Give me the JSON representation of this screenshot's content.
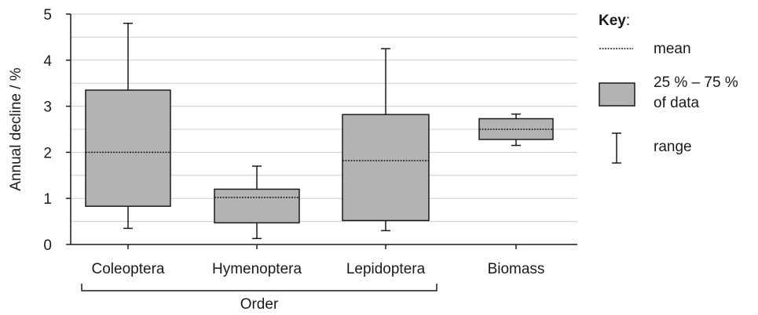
{
  "chart_data": {
    "type": "box",
    "ylabel": "Annual decline / %",
    "ylim": [
      0,
      5
    ],
    "y_ticks": [
      0,
      1,
      2,
      3,
      4,
      5
    ],
    "grid": "horizontal every 0.5",
    "categories": [
      "Coleoptera",
      "Hymenoptera",
      "Lepidoptera",
      "Biomass"
    ],
    "group_label": "Order",
    "group_members": [
      "Coleoptera",
      "Hymenoptera",
      "Lepidoptera"
    ],
    "boxes": [
      {
        "category": "Coleoptera",
        "min": 0.35,
        "q1": 0.83,
        "mean": 2.0,
        "q3": 3.35,
        "max": 4.8
      },
      {
        "category": "Hymenoptera",
        "min": 0.13,
        "q1": 0.47,
        "mean": 1.02,
        "q3": 1.2,
        "max": 1.7
      },
      {
        "category": "Lepidoptera",
        "min": 0.3,
        "q1": 0.52,
        "mean": 1.82,
        "q3": 2.82,
        "max": 4.25
      },
      {
        "category": "Biomass",
        "min": 2.15,
        "q1": 2.28,
        "mean": 2.5,
        "q3": 2.73,
        "max": 2.83
      }
    ],
    "box_fill": "#b3b3b3",
    "line_color": "#1a1a1a",
    "grid_color": "#cccccc",
    "legend": {
      "position": "right",
      "title": "Key",
      "title_suffix": ":",
      "mean_label": "mean",
      "box_label_line1": "25 % – 75 %",
      "box_label_line2": "of data",
      "range_label": "range"
    }
  }
}
